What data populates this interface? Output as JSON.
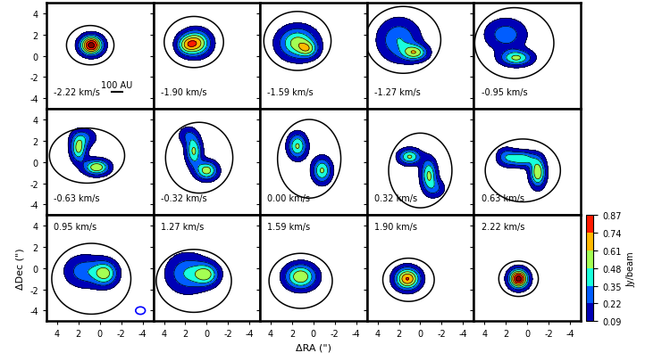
{
  "chart_data": {
    "type": "channel_map",
    "x_label": "ΔRA (\")",
    "y_label": "ΔDec (\")",
    "xlim": [
      5,
      -5
    ],
    "ylim": [
      -5,
      5
    ],
    "xticks": [
      4,
      2,
      0,
      -2,
      -4
    ],
    "yticks": [
      -4,
      -2,
      0,
      2,
      4
    ],
    "colorbar_label": "Jy/beam",
    "colorbar_range": [
      0.09,
      0.87
    ],
    "colorbar_ticks": [
      0.09,
      0.22,
      0.35,
      0.48,
      0.61,
      0.74,
      0.87
    ],
    "scale_bar_label": "100 AU",
    "channels": [
      {
        "label": "-2.22 km/s",
        "emission": [
          [
            0.8,
            1.0,
            0.7,
            0.6,
            0.95
          ]
        ],
        "model": [
          [
            0.9,
            1.0,
            1.2,
            1.0,
            0.5
          ]
        ]
      },
      {
        "label": "-1.90 km/s",
        "emission": [
          [
            1.0,
            1.2,
            0.9,
            0.8,
            0.68
          ],
          [
            2.0,
            1.0,
            0.6,
            0.6,
            0.3
          ]
        ],
        "model": [
          [
            1.2,
            1.3,
            1.5,
            1.3,
            0.5
          ]
        ]
      },
      {
        "label": "-1.59 km/s",
        "emission": [
          [
            1.5,
            1.2,
            1.2,
            1.0,
            0.55
          ],
          [
            0.5,
            0.6,
            0.6,
            0.5,
            0.3
          ]
        ],
        "model": [
          [
            1.5,
            1.4,
            1.7,
            1.5,
            0.5
          ]
        ]
      },
      {
        "label": "-1.27 km/s",
        "emission": [
          [
            2.0,
            1.5,
            1.3,
            1.3,
            0.35
          ],
          [
            0.5,
            0.3,
            0.8,
            0.5,
            0.5
          ]
        ],
        "model": [
          [
            1.6,
            1.5,
            1.9,
            1.7,
            0.5
          ]
        ]
      },
      {
        "label": "-0.95 km/s",
        "emission": [
          [
            1.0,
            -0.2,
            1.0,
            0.5,
            0.5
          ],
          [
            2.0,
            2.0,
            1.3,
            1.0,
            0.3
          ]
        ],
        "model": [
          [
            1.2,
            1.2,
            2.0,
            1.8,
            0.5
          ]
        ]
      },
      {
        "label": "-0.63 km/s",
        "emission": [
          [
            2.0,
            1.2,
            0.5,
            0.8,
            0.5
          ],
          [
            0.3,
            -0.5,
            0.8,
            0.5,
            0.6
          ],
          [
            1.5,
            2.3,
            0.8,
            0.6,
            0.25
          ]
        ],
        "model": [
          [
            1.2,
            0.6,
            1.9,
            1.4,
            0.5
          ]
        ]
      },
      {
        "label": "-0.32 km/s",
        "emission": [
          [
            1.2,
            1.0,
            0.5,
            0.9,
            0.5
          ],
          [
            0.0,
            -0.8,
            0.7,
            0.6,
            0.55
          ],
          [
            1.8,
            2.5,
            0.6,
            0.6,
            0.2
          ]
        ],
        "model": [
          [
            0.7,
            0.4,
            1.7,
            1.8,
            0.5
          ]
        ]
      },
      {
        "label": "0.00 km/s",
        "emission": [
          [
            1.5,
            1.5,
            0.6,
            0.8,
            0.5
          ],
          [
            -0.8,
            -0.8,
            0.6,
            0.8,
            0.5
          ]
        ],
        "model": [
          [
            0.4,
            0.3,
            1.6,
            2.0,
            0.5
          ]
        ]
      },
      {
        "label": "0.32 km/s",
        "emission": [
          [
            1.0,
            0.5,
            0.7,
            0.5,
            0.5
          ],
          [
            -0.8,
            -1.2,
            0.5,
            1.0,
            0.5
          ],
          [
            -1.5,
            -2.5,
            0.6,
            0.6,
            0.2
          ]
        ],
        "model": [
          [
            0.0,
            -0.8,
            1.6,
            1.9,
            0.5
          ]
        ]
      },
      {
        "label": "0.63 km/s",
        "emission": [
          [
            0.5,
            0.3,
            0.9,
            0.5,
            0.45
          ],
          [
            -1.0,
            -1.0,
            0.5,
            0.9,
            0.6
          ],
          [
            2.0,
            0.5,
            0.6,
            0.6,
            0.25
          ]
        ],
        "model": [
          [
            0.4,
            -0.8,
            1.9,
            1.6,
            0.5
          ]
        ]
      },
      {
        "label": "0.95 km/s",
        "emission": [
          [
            -0.5,
            -0.5,
            0.8,
            0.8,
            0.5
          ],
          [
            1.5,
            -0.3,
            1.2,
            1.0,
            0.3
          ]
        ],
        "model": [
          [
            0.8,
            -1.0,
            2.0,
            1.8,
            0.5
          ]
        ]
      },
      {
        "label": "1.27 km/s",
        "emission": [
          [
            0.0,
            -0.6,
            0.8,
            0.7,
            0.45
          ],
          [
            1.8,
            -0.5,
            1.3,
            1.2,
            0.35
          ]
        ],
        "model": [
          [
            1.2,
            -1.2,
            1.9,
            1.6,
            0.5
          ]
        ]
      },
      {
        "label": "1.59 km/s",
        "emission": [
          [
            1.2,
            -0.8,
            1.0,
            0.8,
            0.6
          ]
        ],
        "model": [
          [
            1.2,
            -1.2,
            1.6,
            1.4,
            0.5
          ]
        ]
      },
      {
        "label": "1.90 km/s",
        "emission": [
          [
            1.2,
            -1.0,
            0.8,
            0.7,
            0.75
          ]
        ],
        "model": [
          [
            1.1,
            -1.1,
            1.3,
            1.1,
            0.5
          ]
        ]
      },
      {
        "label": "2.22 km/s",
        "emission": [
          [
            0.8,
            -1.0,
            0.6,
            0.6,
            0.95
          ]
        ],
        "model": [
          [
            0.8,
            -1.0,
            1.0,
            0.9,
            0.5
          ]
        ]
      }
    ]
  }
}
